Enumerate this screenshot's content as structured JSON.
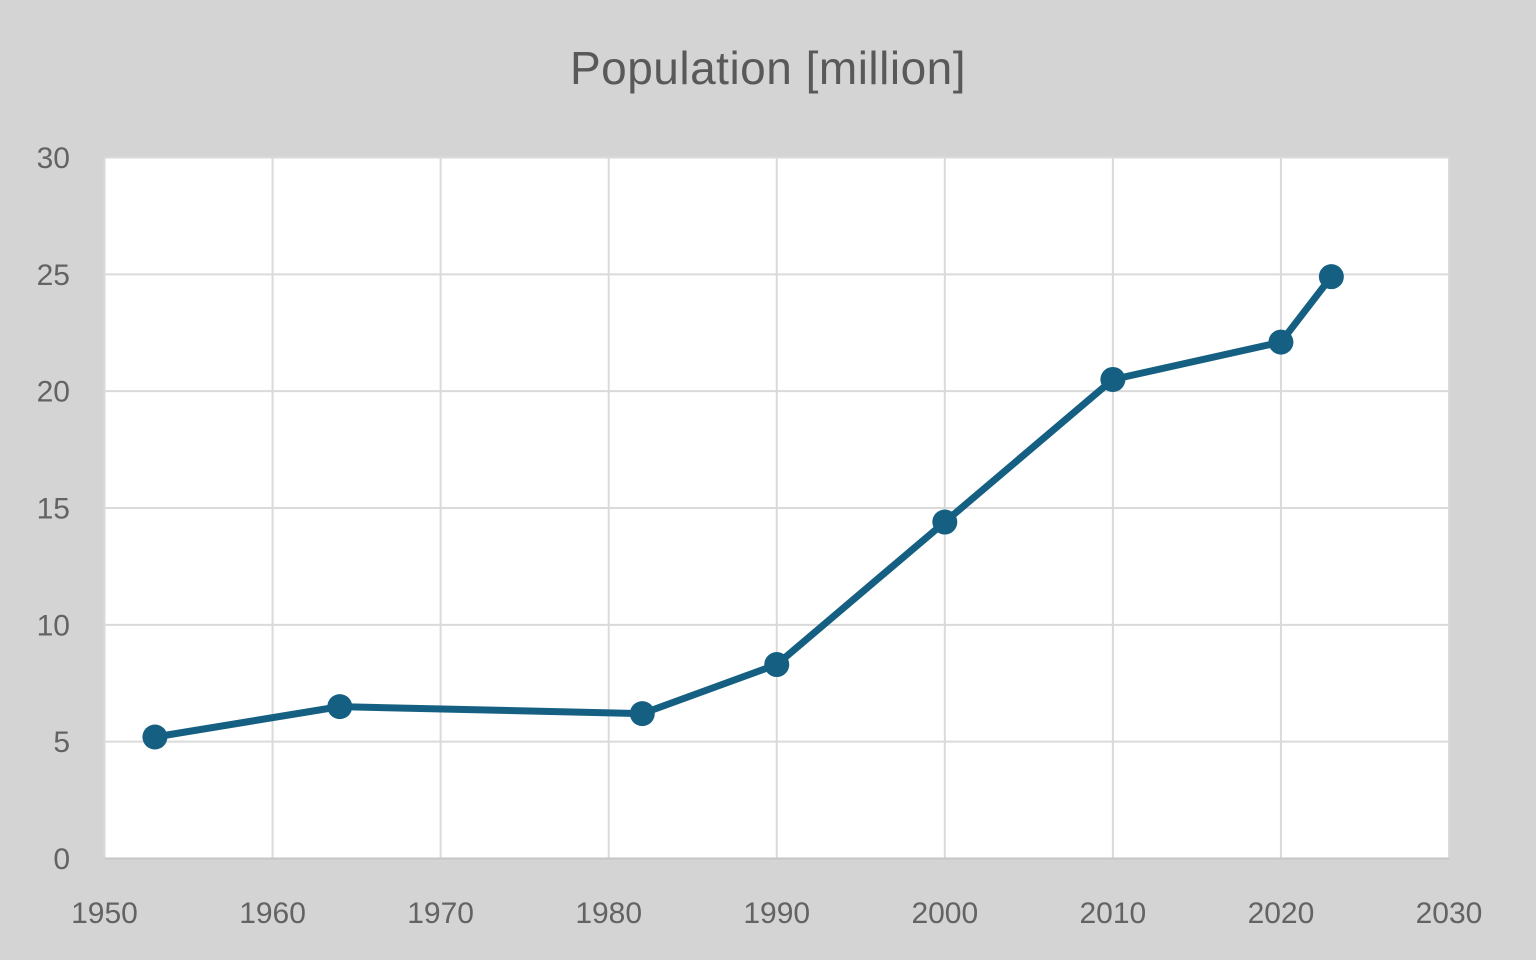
{
  "title": "Population [million]",
  "colors": {
    "background": "#d4d4d4",
    "plot_background": "#ffffff",
    "line": "#156082",
    "marker": "#156082",
    "gridline": "#dadada",
    "axis_line": "#c6c6c6",
    "title_text": "#595959",
    "tick_text": "#636363"
  },
  "chart_data": {
    "type": "line",
    "title": "Population [million]",
    "series": [
      {
        "name": "Population",
        "x": [
          1953,
          1964,
          1982,
          1990,
          2000,
          2010,
          2020,
          2023
        ],
        "y": [
          5.2,
          6.5,
          6.2,
          8.3,
          14.4,
          20.5,
          22.1,
          24.9
        ]
      }
    ],
    "xlim": [
      1950,
      2030
    ],
    "ylim": [
      0,
      30
    ],
    "x_ticks": [
      "1950",
      "1960",
      "1970",
      "1980",
      "1990",
      "2000",
      "2010",
      "2020",
      "2030"
    ],
    "y_ticks": [
      "0",
      "5",
      "10",
      "15",
      "20",
      "25",
      "30"
    ],
    "grid": true,
    "legend": "none",
    "marker": "circle",
    "line_width": 7,
    "marker_radius": 12.5
  }
}
